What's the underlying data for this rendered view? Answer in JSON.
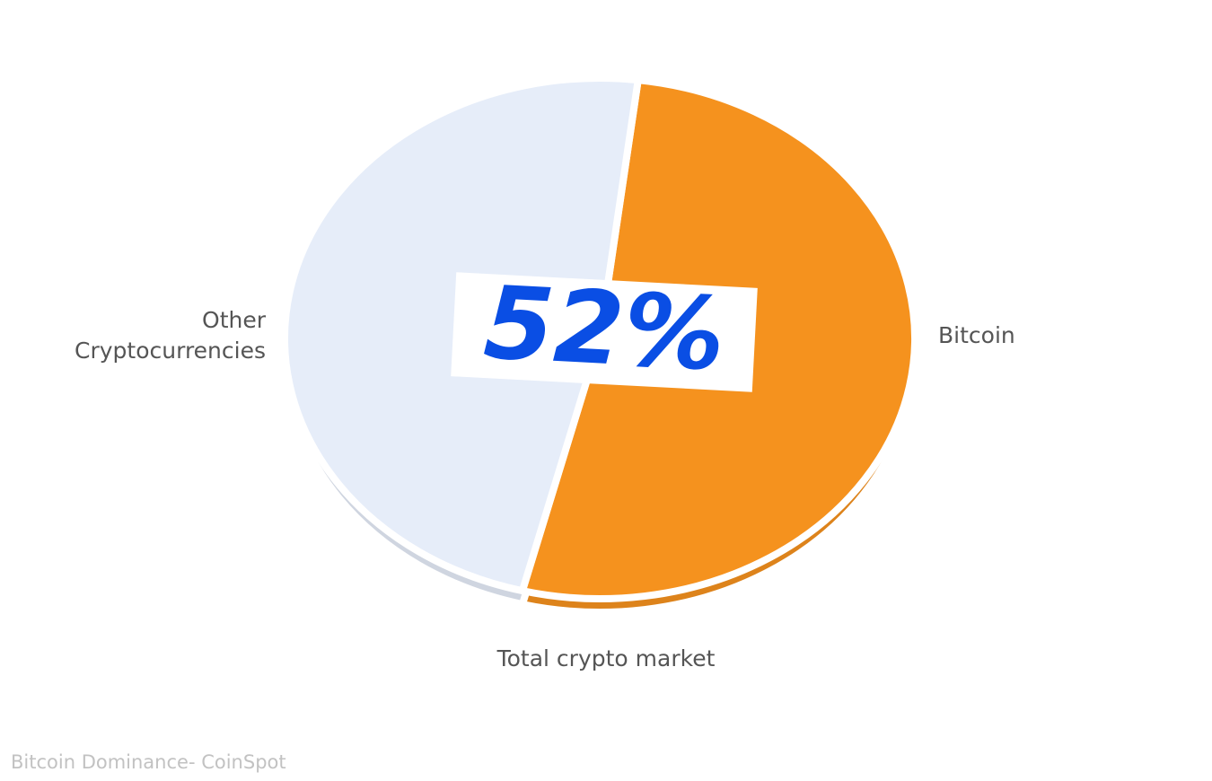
{
  "chart_data": {
    "type": "pie",
    "categories": [
      "Bitcoin",
      "Other Cryptocurrencies"
    ],
    "values": [
      52,
      48
    ],
    "value_labels": [
      "52%",
      null
    ],
    "colors": [
      "#f5921e",
      "#e6edf9"
    ],
    "subtitle": "Total crypto market",
    "source": "Bitcoin Dominance- CoinSpot"
  }
}
